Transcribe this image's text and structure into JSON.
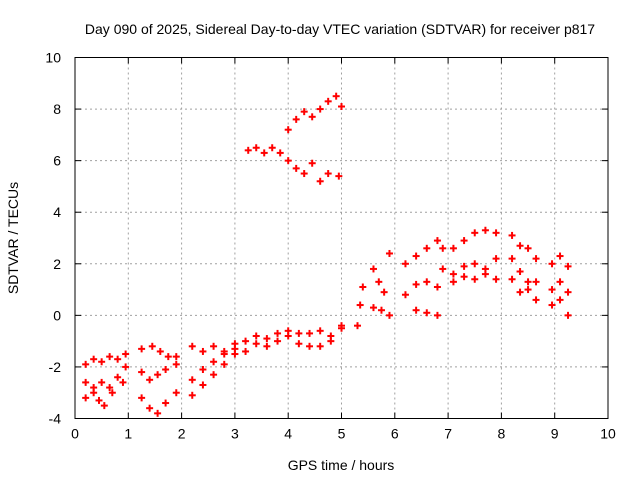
{
  "chart_data": {
    "type": "scatter",
    "title": "Day 090 of 2025, Sidereal Day-to-day VTEC variation (SDTVAR) for receiver p817",
    "xlabel": "GPS time / hours",
    "ylabel": "SDTVAR / TECUs",
    "xlim": [
      0,
      10
    ],
    "ylim": [
      -4,
      10
    ],
    "xticks": [
      "0",
      "1",
      "2",
      "3",
      "4",
      "5",
      "6",
      "7",
      "8",
      "9",
      "10"
    ],
    "yticks": [
      "-4",
      "-2",
      "0",
      "2",
      "4",
      "6",
      "8",
      "10"
    ],
    "grid": true,
    "marker": "+",
    "colors": {
      "points": "#ff0000",
      "grid": "#a0a0a0",
      "frame": "#000000"
    },
    "series": [
      {
        "points": [
          [
            0.2,
            -1.9
          ],
          [
            0.35,
            -1.7
          ],
          [
            0.5,
            -1.8
          ],
          [
            0.65,
            -1.6
          ],
          [
            0.8,
            -1.7
          ],
          [
            0.95,
            -1.5
          ],
          [
            0.2,
            -2.6
          ],
          [
            0.35,
            -2.8
          ],
          [
            0.5,
            -2.6
          ],
          [
            0.65,
            -2.8
          ],
          [
            0.8,
            -2.4
          ],
          [
            0.95,
            -2.0
          ],
          [
            0.2,
            -3.2
          ],
          [
            0.35,
            -3.0
          ],
          [
            0.45,
            -3.3
          ],
          [
            0.55,
            -3.5
          ],
          [
            0.7,
            -3.0
          ],
          [
            0.9,
            -2.6
          ],
          [
            1.25,
            -1.3
          ],
          [
            1.45,
            -1.2
          ],
          [
            1.6,
            -1.4
          ],
          [
            1.75,
            -1.6
          ],
          [
            1.9,
            -1.9
          ],
          [
            1.25,
            -2.2
          ],
          [
            1.4,
            -2.5
          ],
          [
            1.55,
            -2.3
          ],
          [
            1.7,
            -2.1
          ],
          [
            1.9,
            -1.6
          ],
          [
            1.25,
            -3.2
          ],
          [
            1.4,
            -3.6
          ],
          [
            1.55,
            -3.8
          ],
          [
            1.7,
            -3.4
          ],
          [
            1.9,
            -3.0
          ],
          [
            2.2,
            -1.2
          ],
          [
            2.4,
            -1.4
          ],
          [
            2.6,
            -1.2
          ],
          [
            2.8,
            -1.4
          ],
          [
            3.0,
            -1.1
          ],
          [
            2.2,
            -2.5
          ],
          [
            2.4,
            -2.1
          ],
          [
            2.6,
            -1.8
          ],
          [
            2.8,
            -1.5
          ],
          [
            3.0,
            -1.3
          ],
          [
            2.2,
            -3.1
          ],
          [
            2.4,
            -2.7
          ],
          [
            2.6,
            -2.3
          ],
          [
            2.8,
            -1.9
          ],
          [
            3.0,
            -1.5
          ],
          [
            3.2,
            -1.0
          ],
          [
            3.4,
            -0.8
          ],
          [
            3.6,
            -0.9
          ],
          [
            3.8,
            -0.7
          ],
          [
            4.0,
            -0.6
          ],
          [
            4.2,
            -0.7
          ],
          [
            4.4,
            -0.7
          ],
          [
            4.6,
            -0.6
          ],
          [
            4.8,
            -0.8
          ],
          [
            5.0,
            -0.4
          ],
          [
            3.2,
            -1.4
          ],
          [
            3.4,
            -1.1
          ],
          [
            3.6,
            -1.2
          ],
          [
            3.8,
            -1.0
          ],
          [
            4.0,
            -0.8
          ],
          [
            4.2,
            -1.1
          ],
          [
            4.4,
            -1.2
          ],
          [
            4.6,
            -1.2
          ],
          [
            4.8,
            -1.0
          ],
          [
            5.0,
            -0.5
          ],
          [
            3.25,
            6.4
          ],
          [
            3.4,
            6.5
          ],
          [
            3.55,
            6.3
          ],
          [
            3.7,
            6.5
          ],
          [
            3.85,
            6.3
          ],
          [
            4.0,
            6.0
          ],
          [
            4.15,
            5.7
          ],
          [
            4.3,
            5.5
          ],
          [
            4.45,
            5.9
          ],
          [
            4.6,
            5.2
          ],
          [
            4.75,
            5.5
          ],
          [
            4.95,
            5.4
          ],
          [
            4.0,
            7.2
          ],
          [
            4.15,
            7.6
          ],
          [
            4.3,
            7.9
          ],
          [
            4.45,
            7.7
          ],
          [
            4.6,
            8.0
          ],
          [
            4.75,
            8.3
          ],
          [
            4.9,
            8.5
          ],
          [
            5.0,
            8.1
          ],
          [
            5.3,
            -0.4
          ],
          [
            5.35,
            0.4
          ],
          [
            5.4,
            1.1
          ],
          [
            5.6,
            1.8
          ],
          [
            5.7,
            1.3
          ],
          [
            5.8,
            0.9
          ],
          [
            5.6,
            0.3
          ],
          [
            5.75,
            0.2
          ],
          [
            5.9,
            0.0
          ],
          [
            5.9,
            2.4
          ],
          [
            6.2,
            2.0
          ],
          [
            6.4,
            2.3
          ],
          [
            6.6,
            2.6
          ],
          [
            6.8,
            2.9
          ],
          [
            6.9,
            2.6
          ],
          [
            6.2,
            0.8
          ],
          [
            6.4,
            1.2
          ],
          [
            6.6,
            1.3
          ],
          [
            6.8,
            1.1
          ],
          [
            6.9,
            1.8
          ],
          [
            6.4,
            0.2
          ],
          [
            6.6,
            0.1
          ],
          [
            6.8,
            0.0
          ],
          [
            7.1,
            2.6
          ],
          [
            7.3,
            2.9
          ],
          [
            7.5,
            3.2
          ],
          [
            7.7,
            3.3
          ],
          [
            7.9,
            3.2
          ],
          [
            7.1,
            1.6
          ],
          [
            7.3,
            1.9
          ],
          [
            7.5,
            1.4
          ],
          [
            7.7,
            1.8
          ],
          [
            7.9,
            1.4
          ],
          [
            7.1,
            1.3
          ],
          [
            7.3,
            1.5
          ],
          [
            7.5,
            2.0
          ],
          [
            7.7,
            1.6
          ],
          [
            7.9,
            2.2
          ],
          [
            8.2,
            3.1
          ],
          [
            8.35,
            2.7
          ],
          [
            8.5,
            2.6
          ],
          [
            8.65,
            2.2
          ],
          [
            8.2,
            2.2
          ],
          [
            8.35,
            1.7
          ],
          [
            8.5,
            1.3
          ],
          [
            8.65,
            0.6
          ],
          [
            8.2,
            1.4
          ],
          [
            8.35,
            0.9
          ],
          [
            8.5,
            1.0
          ],
          [
            8.65,
            1.3
          ],
          [
            8.95,
            2.0
          ],
          [
            9.1,
            2.3
          ],
          [
            9.25,
            1.9
          ],
          [
            8.95,
            1.0
          ],
          [
            9.1,
            1.3
          ],
          [
            9.25,
            0.9
          ],
          [
            8.95,
            0.4
          ],
          [
            9.1,
            0.6
          ],
          [
            9.25,
            0.0
          ]
        ]
      }
    ]
  }
}
